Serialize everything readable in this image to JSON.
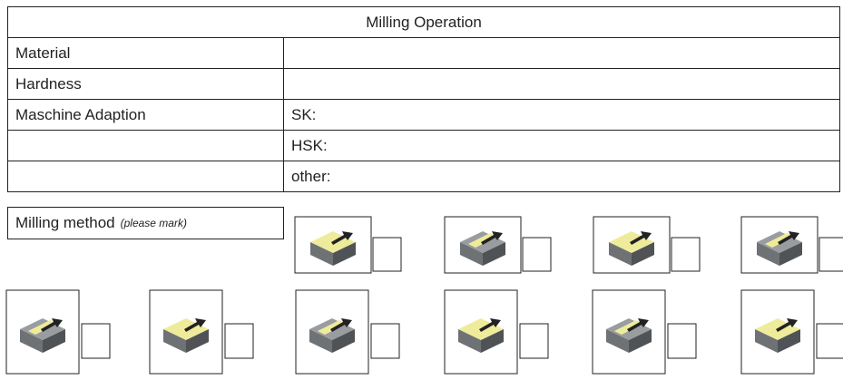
{
  "table": {
    "title": "Milling Operation",
    "rows": [
      {
        "label": "Material"
      },
      {
        "label": "Hardness"
      },
      {
        "label": "Maschine Adaption",
        "value": "SK:"
      },
      {
        "value": "HSK:"
      },
      {
        "value": "other:"
      }
    ]
  },
  "method": {
    "label": "Milling method",
    "note": "(please mark)"
  }
}
